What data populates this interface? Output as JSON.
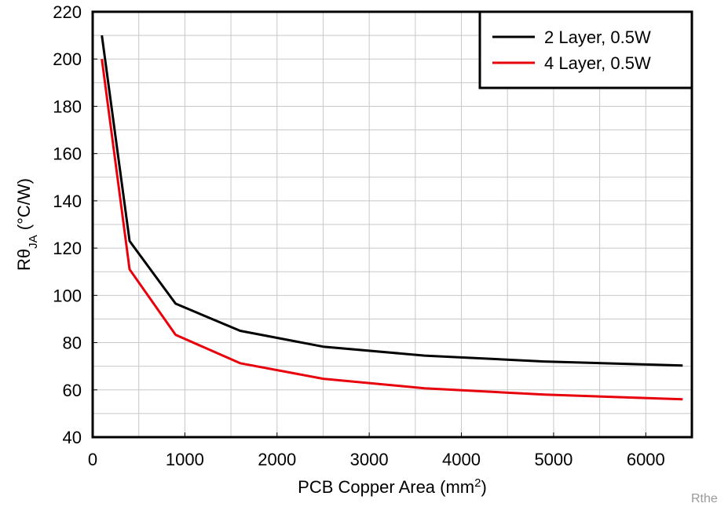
{
  "chart_data": {
    "type": "line",
    "title": "",
    "xlabel": "PCB Copper Area (mm",
    "xlabel_sup": "2",
    "xlabel_tail": ")",
    "ylabel_prefix": "Rθ",
    "ylabel_sub": "JA",
    "ylabel_suffix": " (°C/W)",
    "xlim": [
      0,
      6500
    ],
    "ylim": [
      40,
      220
    ],
    "x_ticks": [
      0,
      1000,
      2000,
      3000,
      4000,
      5000,
      6000
    ],
    "x_minor_step": 500,
    "y_ticks": [
      40,
      60,
      80,
      100,
      120,
      140,
      160,
      180,
      200,
      220
    ],
    "y_minor_step": 10,
    "grid": true,
    "legend_position": "top-right",
    "series": [
      {
        "name": "2 Layer, 0.5W",
        "color": "#000000",
        "x": [
          100,
          400,
          900,
          1600,
          2500,
          3600,
          4900,
          6400
        ],
        "y": [
          210,
          123,
          96.5,
          85,
          78.3,
          74.5,
          72,
          70.3
        ]
      },
      {
        "name": "4 Layer, 0.5W",
        "color": "#e8000b",
        "x": [
          100,
          400,
          900,
          1600,
          2500,
          3600,
          4900,
          6400
        ],
        "y": [
          200,
          111,
          83.3,
          71.3,
          64.7,
          60.7,
          58,
          56
        ]
      }
    ]
  },
  "footer_label": "Rthe"
}
